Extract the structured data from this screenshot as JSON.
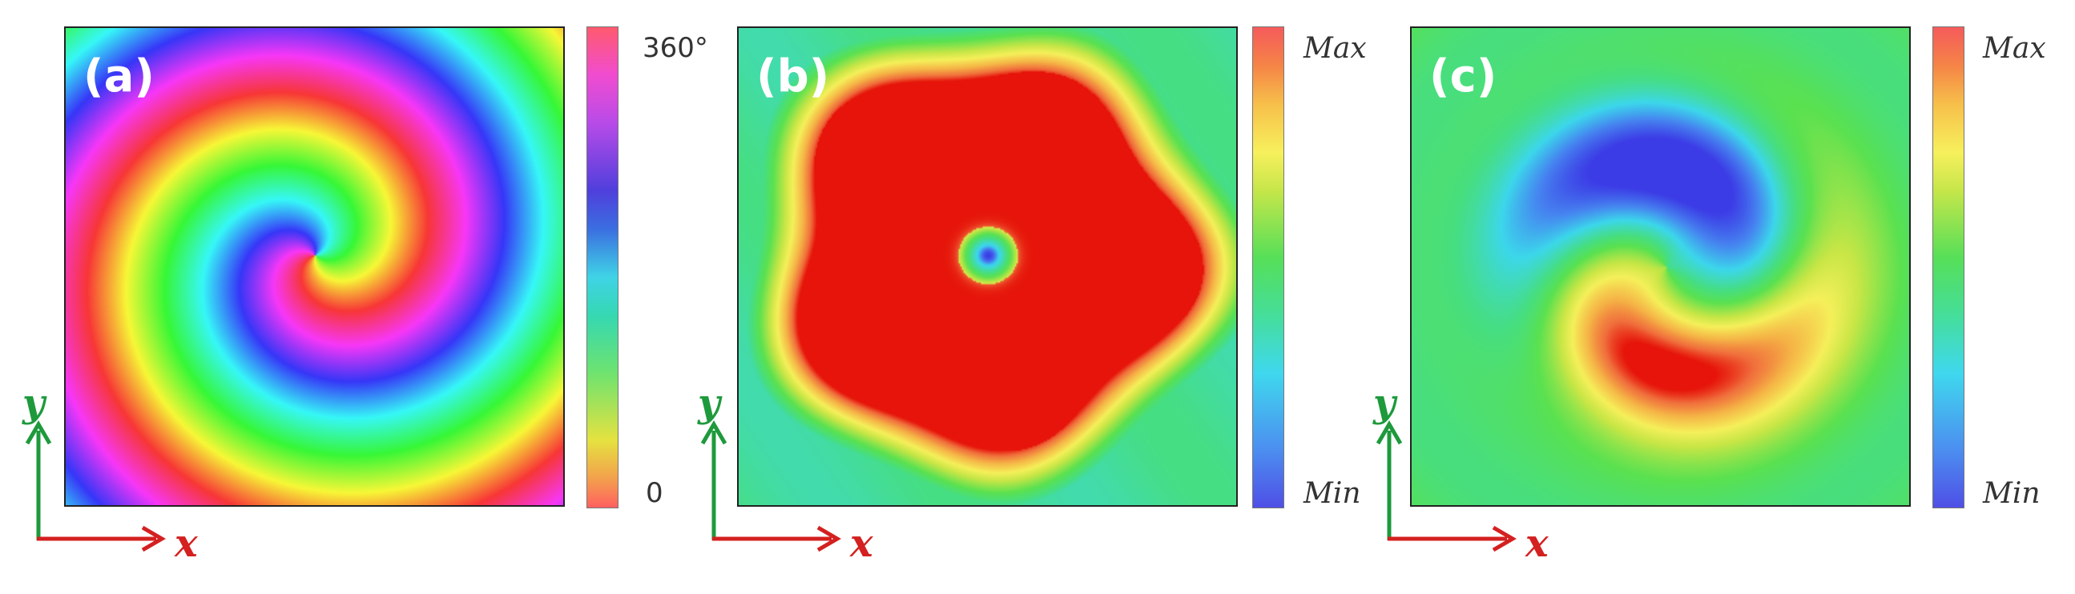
{
  "figure": {
    "panels": [
      {
        "label": "(a)",
        "map_kind": "phase",
        "colorbar": {
          "top": "360°",
          "bottom": "0",
          "style": "upright"
        }
      },
      {
        "label": "(b)",
        "map_kind": "intensity",
        "colorbar": {
          "top": "Max",
          "bottom": "Min",
          "style": "italic"
        }
      },
      {
        "label": "(c)",
        "map_kind": "lobes",
        "colorbar": {
          "top": "Max",
          "bottom": "Min",
          "style": "italic"
        }
      }
    ],
    "axes": {
      "x_label": "x",
      "y_label": "y",
      "x_color": "#d42020",
      "y_color": "#1e9a3c"
    }
  }
}
